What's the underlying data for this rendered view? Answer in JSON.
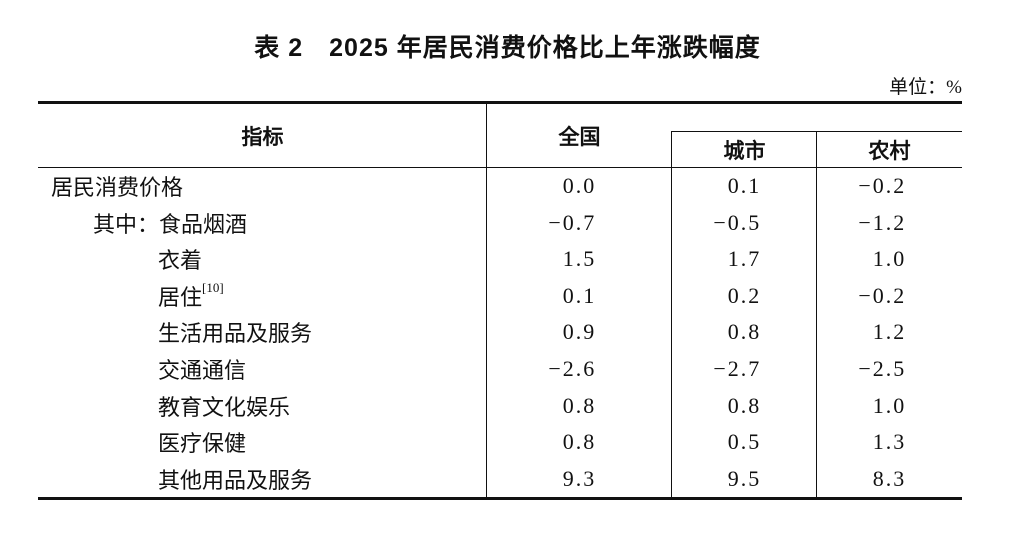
{
  "title": "表 2　2025 年居民消费价格比上年涨跌幅度",
  "unit_label": "单位：%",
  "colors": {
    "text": "#111111",
    "border": "#111111",
    "background": "#ffffff"
  },
  "table": {
    "header": {
      "indicator": "指标",
      "national": "全国",
      "city": "城市",
      "rural": "农村"
    },
    "rows": [
      {
        "label": "居民消费价格",
        "national": "0.0",
        "city": "0.1",
        "rural": "-0.2"
      },
      {
        "label": "其中：食品烟酒",
        "national": "-0.7",
        "city": "-0.5",
        "rural": "-1.2"
      },
      {
        "label": "衣着",
        "national": "1.5",
        "city": "1.7",
        "rural": "1.0"
      },
      {
        "label": "居住",
        "sup": "[10]",
        "national": "0.1",
        "city": "0.2",
        "rural": "-0.2"
      },
      {
        "label": "生活用品及服务",
        "national": "0.9",
        "city": "0.8",
        "rural": "1.2"
      },
      {
        "label": "交通通信",
        "national": "-2.6",
        "city": "-2.7",
        "rural": "-2.5"
      },
      {
        "label": "教育文化娱乐",
        "national": "0.8",
        "city": "0.8",
        "rural": "1.0"
      },
      {
        "label": "医疗保健",
        "national": "0.8",
        "city": "0.5",
        "rural": "1.3"
      },
      {
        "label": "其他用品及服务",
        "national": "9.3",
        "city": "9.5",
        "rural": "8.3"
      }
    ]
  }
}
